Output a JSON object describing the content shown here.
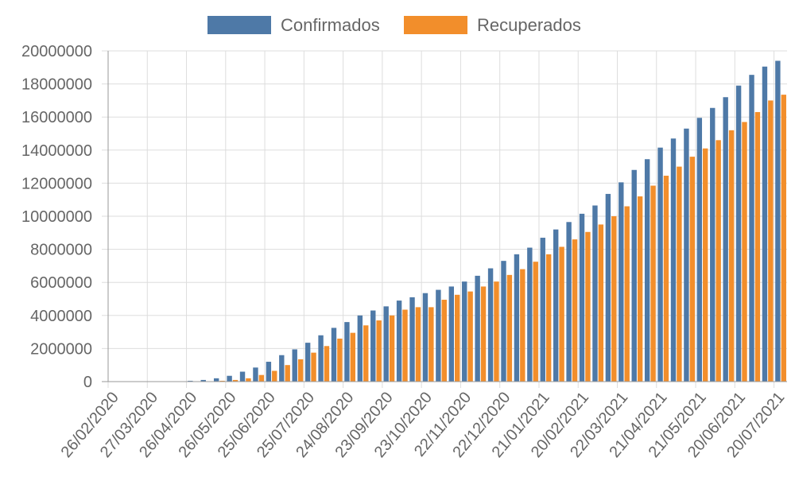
{
  "chart_data": {
    "type": "bar",
    "title": "",
    "xlabel": "",
    "ylabel": "",
    "ylim": [
      0,
      20000000
    ],
    "yticks": [
      0,
      2000000,
      4000000,
      6000000,
      8000000,
      10000000,
      12000000,
      14000000,
      16000000,
      18000000,
      20000000
    ],
    "grid": true,
    "legend_position": "top-center",
    "x_tick_labels": [
      {
        "index": 0,
        "label": "26/02/2020"
      },
      {
        "index": 3,
        "label": "27/03/2020"
      },
      {
        "index": 6,
        "label": "26/04/2020"
      },
      {
        "index": 9,
        "label": "26/05/2020"
      },
      {
        "index": 12,
        "label": "25/06/2020"
      },
      {
        "index": 15,
        "label": "25/07/2020"
      },
      {
        "index": 18,
        "label": "24/08/2020"
      },
      {
        "index": 21,
        "label": "23/09/2020"
      },
      {
        "index": 24,
        "label": "23/10/2020"
      },
      {
        "index": 27,
        "label": "22/11/2020"
      },
      {
        "index": 30,
        "label": "22/12/2020"
      },
      {
        "index": 33,
        "label": "21/01/2021"
      },
      {
        "index": 36,
        "label": "20/02/2021"
      },
      {
        "index": 39,
        "label": "22/03/2021"
      },
      {
        "index": 42,
        "label": "21/04/2021"
      },
      {
        "index": 45,
        "label": "21/05/2021"
      },
      {
        "index": 48,
        "label": "20/06/2021"
      },
      {
        "index": 51,
        "label": "20/07/2021"
      }
    ],
    "series": [
      {
        "name": "Confirmados",
        "color": "#4e79a7",
        "values": [
          0,
          0,
          0,
          0,
          0,
          10000,
          50000,
          100000,
          200000,
          350000,
          600000,
          850000,
          1200000,
          1600000,
          1950000,
          2350000,
          2800000,
          3250000,
          3600000,
          4000000,
          4300000,
          4550000,
          4900000,
          5100000,
          5350000,
          5550000,
          5750000,
          6050000,
          6400000,
          6850000,
          7300000,
          7700000,
          8100000,
          8700000,
          9200000,
          9650000,
          10150000,
          10650000,
          11350000,
          12050000,
          12800000,
          13450000,
          14150000,
          14700000,
          15300000,
          15950000,
          16550000,
          17200000,
          17900000,
          18550000,
          19050000,
          19400000
        ]
      },
      {
        "name": "Recuperados",
        "color": "#f28e2b",
        "values": [
          0,
          0,
          0,
          0,
          0,
          0,
          10000,
          20000,
          50000,
          100000,
          200000,
          400000,
          650000,
          1000000,
          1350000,
          1750000,
          2150000,
          2600000,
          2950000,
          3400000,
          3700000,
          4000000,
          4350000,
          4500000,
          4500000,
          4950000,
          5250000,
          5450000,
          5750000,
          6050000,
          6450000,
          6800000,
          7250000,
          7700000,
          8150000,
          8600000,
          9050000,
          9500000,
          10000000,
          10600000,
          11200000,
          11850000,
          12450000,
          13000000,
          13600000,
          14100000,
          14600000,
          15200000,
          15700000,
          16300000,
          17000000,
          17350000
        ]
      }
    ]
  }
}
